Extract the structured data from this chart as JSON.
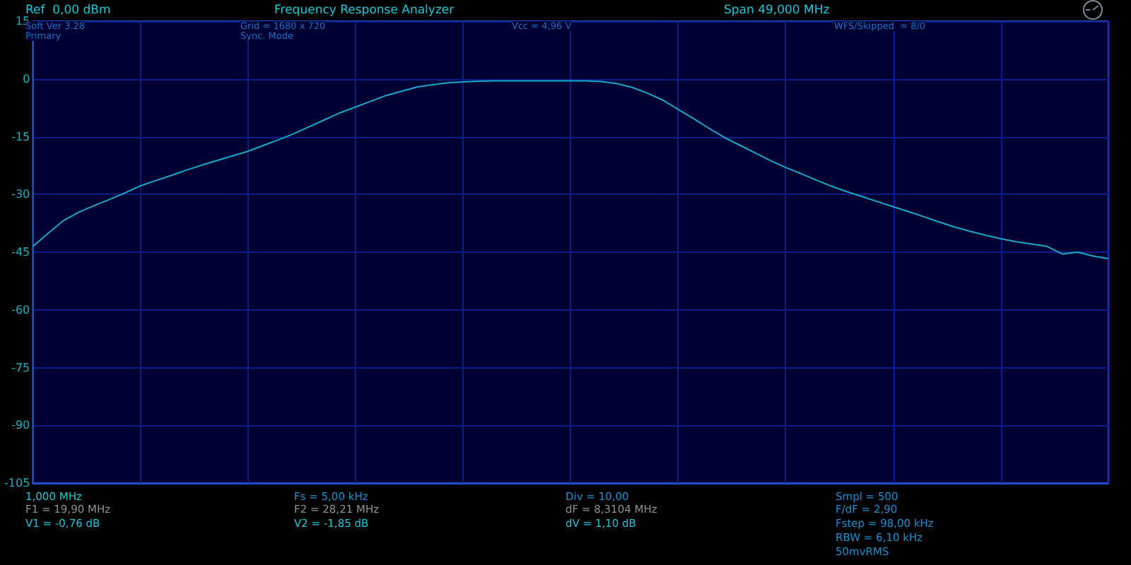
{
  "chart_data": {
    "type": "line",
    "title": "Frequency Response Analyzer",
    "annotations": [
      "Ref  0,00 dBm",
      "Span 49,000 MHz",
      "Soft Ver 3.28",
      "Primary",
      "Grid = 1680 x 720",
      "Sync. Mode",
      "Vcc = 4,96 V",
      "WFS/Skipped  = 8/0",
      "1,000 MHz",
      "F1 = 19,90 MHz",
      "V1 = -0,76 dB",
      "Fs = 5,00 kHz",
      "F2 = 28,21 MHz",
      "V2 = -1,85 dB",
      "Div = 10,00",
      "dF = 8,3104 MHz",
      "dV = 1,10 dB",
      "Smpl = 500",
      "F/dF = 2,90",
      "Fstep = 98,00 kHz",
      "RBW = 6,10 kHz",
      "50mvRMS"
    ],
    "categories": [
      null,
      null,
      null,
      null,
      null,
      null,
      null,
      null,
      null,
      null,
      null,
      null,
      null,
      null,
      null,
      null,
      null,
      null,
      null,
      null,
      null,
      null,
      null,
      null,
      null,
      null,
      null,
      null,
      null,
      null,
      null,
      null,
      null,
      null,
      null,
      null,
      null,
      null,
      null,
      null,
      null,
      null,
      null,
      null,
      null,
      null,
      null,
      null,
      null,
      null,
      null,
      null,
      null,
      null,
      null,
      null,
      null,
      null,
      null,
      null,
      null,
      null,
      null,
      null,
      null,
      null,
      null,
      null,
      null,
      null,
      null
    ],
    "series": [
      {
        "color": "#1aa8c8",
        "values": [
          -43.6,
          -40.1,
          -36.8,
          -34.6,
          -32.9,
          -31.3,
          -29.6,
          -27.8,
          -26.4,
          -25.1,
          -23.7,
          -22.4,
          -21.2,
          -20.0,
          -18.8,
          -17.3,
          -15.8,
          -14.2,
          -12.4,
          -10.6,
          -8.8,
          -7.3,
          -5.8,
          -4.3,
          -3.2,
          -2.1,
          -1.5,
          -1.0,
          -0.8,
          -0.6,
          -0.5,
          -0.5,
          -0.5,
          -0.5,
          -0.5,
          -0.5,
          -0.5,
          -0.7,
          -1.2,
          -2.2,
          -3.7,
          -5.5,
          -7.9,
          -10.3,
          -12.8,
          -15.2,
          -17.2,
          -19.2,
          -21.2,
          -23.0,
          -24.6,
          -26.3,
          -27.9,
          -29.3,
          -30.6,
          -31.9,
          -33.2,
          -34.5,
          -35.8,
          -37.2,
          -38.5,
          -39.6,
          -40.6,
          -41.5,
          -42.3,
          -42.9,
          -43.5,
          -45.5,
          -45.0,
          -46.0,
          -46.7
        ]
      }
    ],
    "ylim": [
      -105,
      15
    ],
    "yticks": [
      -105,
      -90,
      -75,
      -60,
      -45,
      -30,
      -15,
      0,
      15
    ],
    "tick_labels": "y",
    "grid": true,
    "marker": "none",
    "line_style": "solid"
  }
}
